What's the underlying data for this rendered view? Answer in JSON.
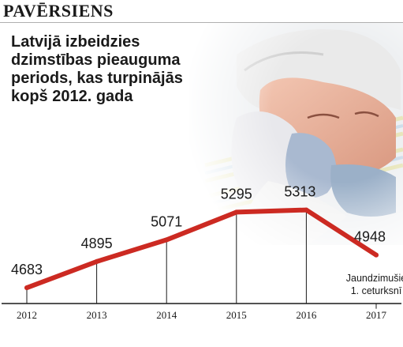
{
  "header": {
    "label": "PAVĒRSIENS"
  },
  "headline": "Latvijā izbeidzies dzimstības pieauguma periods, kas turpinājās kopš 2012. gada",
  "colors": {
    "line": "#cc2a22",
    "axis": "#1a1a1a",
    "label": "#1a1a1a"
  },
  "chart_data": {
    "type": "line",
    "categories": [
      "2012",
      "2013",
      "2014",
      "2015",
      "2016",
      "2017"
    ],
    "values": [
      4683,
      4895,
      5071,
      5295,
      5313,
      4948
    ],
    "data_labels": [
      "4683",
      "4895",
      "5071",
      "5295",
      "5313",
      "4948"
    ],
    "annotation": [
      "Jaundzimušie",
      "1. ceturksnī"
    ],
    "title": "",
    "xlabel": "",
    "ylabel": "",
    "ylim": [
      4600,
      5400
    ],
    "grid": false
  }
}
